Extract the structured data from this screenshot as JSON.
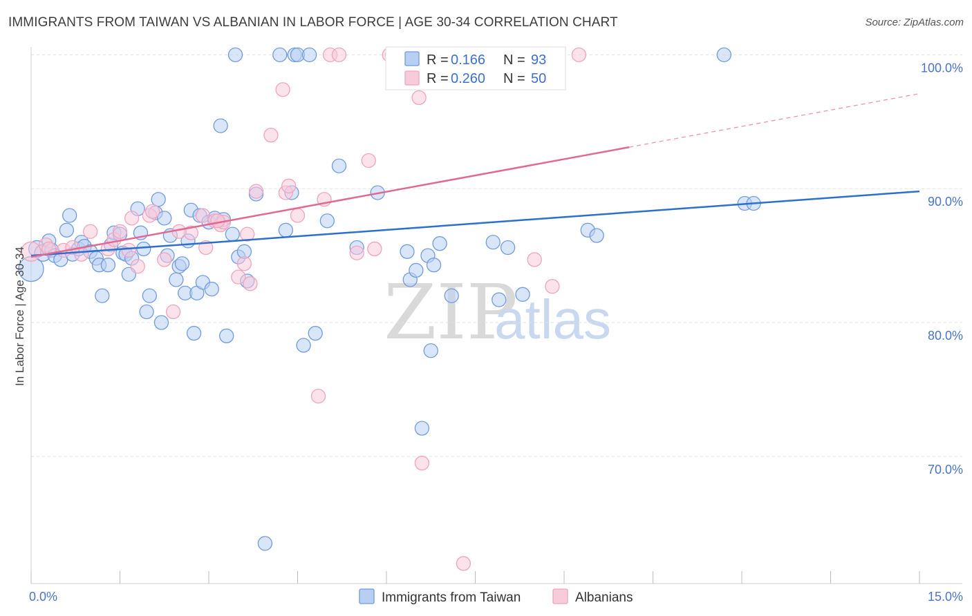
{
  "title": "IMMIGRANTS FROM TAIWAN VS ALBANIAN IN LABOR FORCE | AGE 30-34 CORRELATION CHART",
  "source": "Source: ZipAtlas.com",
  "watermark": {
    "zip": "ZIP",
    "atlas": "atlas"
  },
  "chart_data": {
    "type": "scatter",
    "xlabel": "",
    "ylabel": "In Labor Force | Age 30-34",
    "xlim": [
      0,
      15
    ],
    "ylim": [
      60.5,
      101
    ],
    "x_tick_labels": [
      {
        "value": 0,
        "label": "0.0%"
      },
      {
        "value": 15,
        "label": "15.0%"
      }
    ],
    "y_tick_labels": [
      {
        "value": 100,
        "label": "100.0%"
      },
      {
        "value": 90,
        "label": "90.0%"
      },
      {
        "value": 80,
        "label": "80.0%"
      },
      {
        "value": 70,
        "label": "70.0%"
      }
    ],
    "grid": true,
    "legend_placement": "top-center",
    "legend": [
      {
        "r_label": "R =",
        "r_value": "0.166",
        "n_label": "N =",
        "n_value": "93",
        "color": "#6f9be0"
      },
      {
        "r_label": "R =",
        "r_value": "0.260",
        "n_label": "N =",
        "n_value": "50",
        "color": "#f0a3bd"
      }
    ],
    "series": [
      {
        "name": "Immigrants from Taiwan",
        "color": "#6f9be0",
        "fill": "#b9cff2",
        "trend_color": "#2d6fcc",
        "trend": {
          "x": [
            0,
            15
          ],
          "y": [
            85.0,
            89.8
          ]
        },
        "points": [
          [
            0.0,
            84.0,
            18
          ],
          [
            0.1,
            85.5,
            12
          ],
          [
            0.2,
            85.2,
            12
          ],
          [
            0.3,
            86.1,
            10
          ],
          [
            0.35,
            85.4,
            10
          ],
          [
            0.4,
            85.0,
            10
          ],
          [
            0.5,
            84.7,
            10
          ],
          [
            0.6,
            86.9,
            10
          ],
          [
            0.65,
            88.0,
            10
          ],
          [
            0.7,
            85.1,
            10
          ],
          [
            0.8,
            85.5,
            10
          ],
          [
            0.85,
            86.0,
            10
          ],
          [
            0.9,
            85.7,
            10
          ],
          [
            1.0,
            85.3,
            10
          ],
          [
            1.1,
            84.8,
            10
          ],
          [
            1.15,
            84.3,
            10
          ],
          [
            1.2,
            82.0,
            10
          ],
          [
            1.3,
            84.3,
            10
          ],
          [
            1.35,
            85.8,
            10
          ],
          [
            1.4,
            86.7,
            10
          ],
          [
            1.5,
            86.6,
            10
          ],
          [
            1.55,
            85.2,
            10
          ],
          [
            1.6,
            85.1,
            10
          ],
          [
            1.65,
            83.6,
            10
          ],
          [
            1.7,
            84.8,
            10
          ],
          [
            1.8,
            88.5,
            10
          ],
          [
            1.85,
            86.7,
            10
          ],
          [
            1.9,
            85.5,
            10
          ],
          [
            1.95,
            80.8,
            10
          ],
          [
            2.0,
            82.0,
            10
          ],
          [
            2.1,
            88.2,
            10
          ],
          [
            2.15,
            89.2,
            10
          ],
          [
            2.2,
            80.0,
            10
          ],
          [
            2.25,
            87.8,
            10
          ],
          [
            2.3,
            85.0,
            10
          ],
          [
            2.35,
            86.5,
            10
          ],
          [
            2.45,
            83.2,
            10
          ],
          [
            2.5,
            84.2,
            10
          ],
          [
            2.55,
            84.4,
            10
          ],
          [
            2.6,
            82.2,
            10
          ],
          [
            2.65,
            86.1,
            10
          ],
          [
            2.7,
            88.4,
            10
          ],
          [
            2.75,
            79.2,
            10
          ],
          [
            2.8,
            82.2,
            10
          ],
          [
            2.85,
            88.0,
            10
          ],
          [
            2.9,
            83.0,
            10
          ],
          [
            3.0,
            87.5,
            10
          ],
          [
            3.05,
            82.5,
            10
          ],
          [
            3.1,
            87.8,
            10
          ],
          [
            3.2,
            94.7,
            10
          ],
          [
            3.25,
            87.7,
            10
          ],
          [
            3.3,
            79.0,
            10
          ],
          [
            3.4,
            86.6,
            10
          ],
          [
            3.45,
            100.0,
            10
          ],
          [
            3.5,
            84.9,
            10
          ],
          [
            3.6,
            85.3,
            10
          ],
          [
            3.65,
            83.1,
            10
          ],
          [
            3.8,
            89.6,
            10
          ],
          [
            3.95,
            63.5,
            10
          ],
          [
            4.2,
            100.0,
            10
          ],
          [
            4.3,
            86.9,
            10
          ],
          [
            4.4,
            89.7,
            10
          ],
          [
            4.45,
            100.0,
            10
          ],
          [
            4.5,
            100.0,
            10
          ],
          [
            4.6,
            78.3,
            10
          ],
          [
            4.7,
            100.0,
            10
          ],
          [
            4.8,
            79.2,
            10
          ],
          [
            5.0,
            87.6,
            10
          ],
          [
            5.2,
            91.7,
            10
          ],
          [
            5.5,
            85.6,
            10
          ],
          [
            5.85,
            89.7,
            10
          ],
          [
            6.1,
            100.0,
            10
          ],
          [
            6.35,
            85.3,
            10
          ],
          [
            6.4,
            83.2,
            10
          ],
          [
            6.5,
            83.9,
            10
          ],
          [
            6.6,
            72.1,
            10
          ],
          [
            6.7,
            85.0,
            10
          ],
          [
            6.75,
            77.9,
            10
          ],
          [
            6.8,
            84.3,
            10
          ],
          [
            6.9,
            85.9,
            10
          ],
          [
            7.1,
            82.0,
            10
          ],
          [
            7.8,
            86.0,
            10
          ],
          [
            7.9,
            81.7,
            10
          ],
          [
            8.05,
            85.6,
            10
          ],
          [
            8.3,
            82.1,
            10
          ],
          [
            9.4,
            86.9,
            10
          ],
          [
            9.55,
            86.5,
            10
          ],
          [
            11.7,
            100.0,
            10
          ],
          [
            12.05,
            88.9,
            10
          ],
          [
            12.2,
            88.9,
            10
          ]
        ]
      },
      {
        "name": "Albanians",
        "color": "#f0a3bd",
        "fill": "#f8cbda",
        "trend_color": "#e06892",
        "trend": {
          "x": [
            0,
            10.1
          ],
          "y": [
            84.9,
            93.1
          ]
        },
        "trend_ext": {
          "x": [
            10.1,
            15
          ],
          "y": [
            93.1,
            97.1
          ]
        },
        "points": [
          [
            0.0,
            85.3,
            14
          ],
          [
            0.25,
            85.8,
            10
          ],
          [
            0.55,
            85.4,
            10
          ],
          [
            0.85,
            85.1,
            10
          ],
          [
            1.0,
            86.8,
            10
          ],
          [
            1.3,
            85.5,
            10
          ],
          [
            1.4,
            86.2,
            10
          ],
          [
            1.5,
            86.8,
            10
          ],
          [
            1.7,
            87.8,
            10
          ],
          [
            1.8,
            84.2,
            10
          ],
          [
            2.0,
            88.0,
            10
          ],
          [
            2.05,
            88.3,
            10
          ],
          [
            2.25,
            84.7,
            10
          ],
          [
            2.4,
            80.8,
            10
          ],
          [
            2.7,
            86.7,
            10
          ],
          [
            2.9,
            88.0,
            10
          ],
          [
            2.95,
            85.6,
            10
          ],
          [
            3.1,
            87.6,
            10
          ],
          [
            3.2,
            87.3,
            10
          ],
          [
            3.25,
            87.5,
            10
          ],
          [
            3.5,
            83.4,
            10
          ],
          [
            3.6,
            84.4,
            10
          ],
          [
            3.65,
            86.6,
            10
          ],
          [
            3.7,
            82.9,
            10
          ],
          [
            3.8,
            89.8,
            10
          ],
          [
            4.05,
            94.0,
            10
          ],
          [
            4.25,
            97.4,
            10
          ],
          [
            4.3,
            89.7,
            10
          ],
          [
            4.35,
            90.2,
            10
          ],
          [
            4.5,
            88.0,
            10
          ],
          [
            4.85,
            74.5,
            10
          ],
          [
            4.95,
            89.2,
            10
          ],
          [
            5.05,
            100.0,
            10
          ],
          [
            5.2,
            100.0,
            10
          ],
          [
            5.5,
            85.2,
            10
          ],
          [
            5.7,
            92.1,
            10
          ],
          [
            5.8,
            85.5,
            10
          ],
          [
            6.05,
            100.0,
            10
          ],
          [
            6.35,
            98.1,
            10
          ],
          [
            6.55,
            96.8,
            10
          ],
          [
            6.6,
            69.5,
            10
          ],
          [
            7.3,
            62.0,
            10
          ],
          [
            8.5,
            84.7,
            10
          ],
          [
            8.8,
            82.7,
            10
          ],
          [
            9.25,
            100.0,
            10
          ],
          [
            0.3,
            85.5,
            10
          ],
          [
            0.7,
            85.6,
            10
          ],
          [
            1.65,
            85.4,
            10
          ],
          [
            2.5,
            86.8,
            10
          ],
          [
            3.15,
            87.6,
            10
          ]
        ]
      }
    ]
  }
}
